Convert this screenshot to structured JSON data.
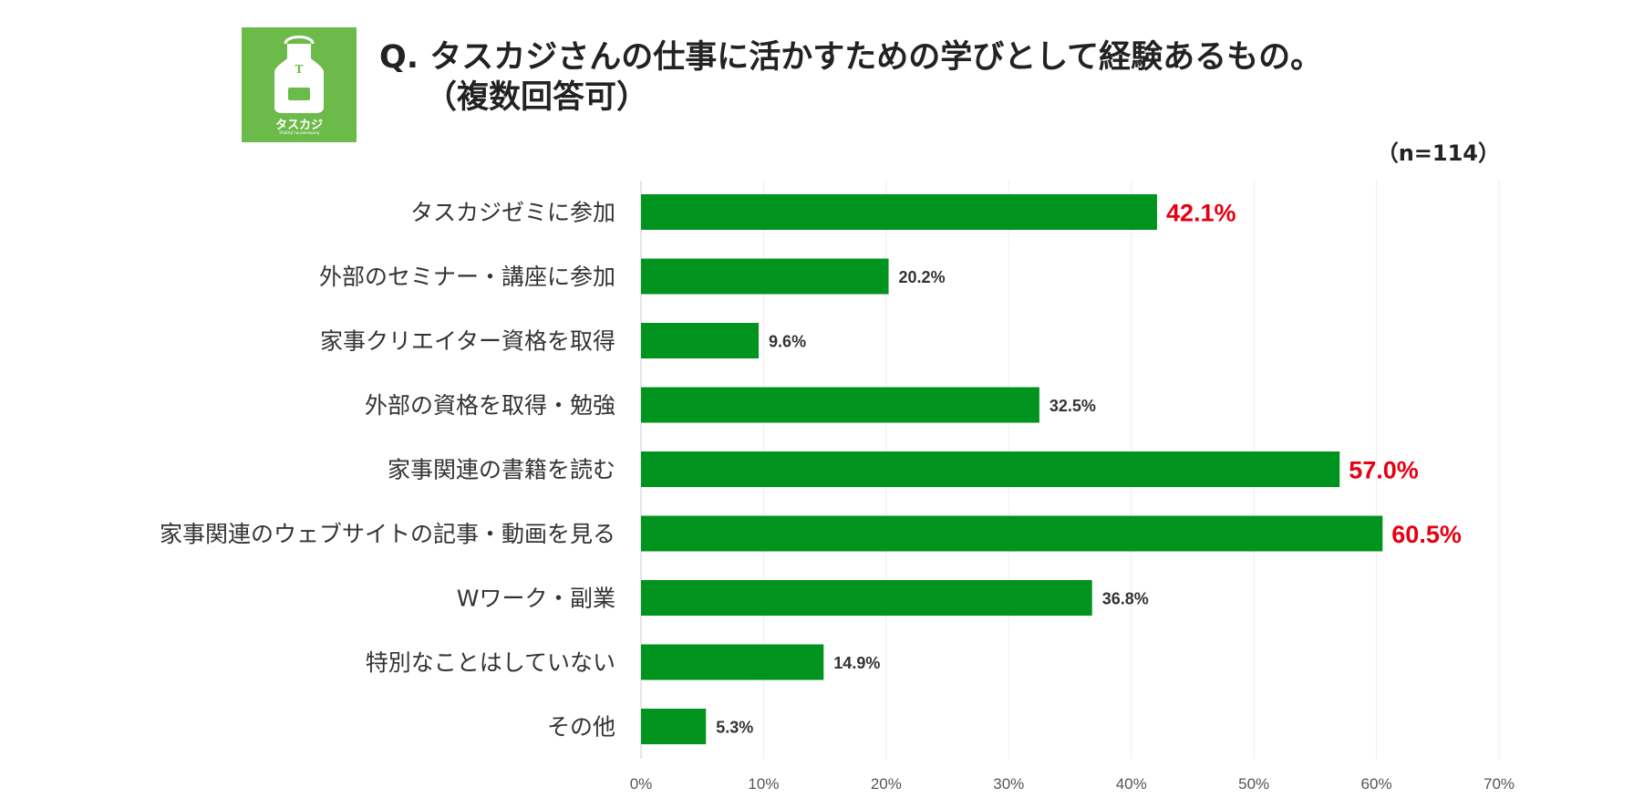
{
  "header": {
    "logo_text": "タスカジ",
    "logo_sub": "TASKAJI housekeeping",
    "title_line1": "Q. タスカジさんの仕事に活かすための学びとして経験あるもの。",
    "title_line2": "（複数回答可）",
    "sample_size": "（n=114）"
  },
  "colors": {
    "bar": "#00931d",
    "highlight_label": "#e60012",
    "normal_label": "#333333",
    "logo_bg": "#6cbb4a"
  },
  "chart_data": {
    "type": "bar",
    "orientation": "horizontal",
    "title": "Q. タスカジさんの仕事に活かすための学びとして経験あるもの。（複数回答可）",
    "categories": [
      "タスカジゼミに参加",
      "外部のセミナー・講座に参加",
      "家事クリエイター資格を取得",
      "外部の資格を取得・勉強",
      "家事関連の書籍を読む",
      "家事関連のウェブサイトの記事・動画を見る",
      "Wワーク・副業",
      "特別なことはしていない",
      "その他"
    ],
    "values": [
      42.1,
      20.2,
      9.6,
      32.5,
      57.0,
      60.5,
      36.8,
      14.9,
      5.3
    ],
    "value_labels": [
      "42.1%",
      "20.2%",
      "9.6%",
      "32.5%",
      "57.0%",
      "60.5%",
      "36.8%",
      "14.9%",
      "5.3%"
    ],
    "highlighted": [
      true,
      false,
      false,
      false,
      true,
      true,
      false,
      false,
      false
    ],
    "xlim": [
      0,
      70
    ],
    "xticks": [
      0,
      10,
      20,
      30,
      40,
      50,
      60,
      70
    ],
    "xtick_labels": [
      "0%",
      "10%",
      "20%",
      "30%",
      "40%",
      "50%",
      "60%",
      "70%"
    ],
    "grid": true
  }
}
